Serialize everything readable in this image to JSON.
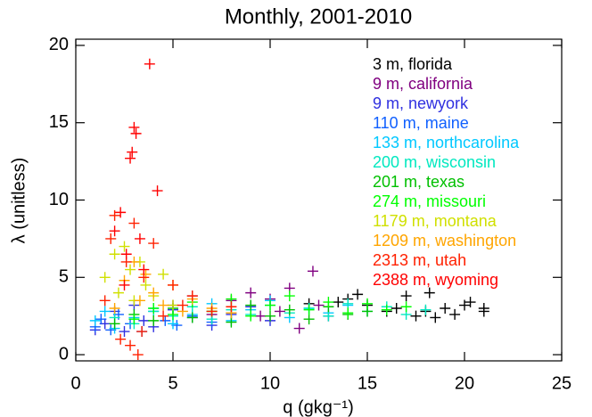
{
  "chart_data": {
    "type": "scatter",
    "title": "Monthly, 2001-2010",
    "xlabel": "q (gkg⁻¹)",
    "ylabel": "λ (unitless)",
    "xlim": [
      0,
      25
    ],
    "ylim": [
      -0.4,
      20.4
    ],
    "xticks": [
      0,
      5,
      10,
      15,
      20,
      25
    ],
    "yticks": [
      0,
      5,
      10,
      15,
      20
    ],
    "series": [
      {
        "name": "3 m, florida",
        "color": "#000000",
        "x": [
          12,
          13.5,
          14,
          14.5,
          15,
          16,
          16.5,
          17,
          17.5,
          18,
          18.2,
          18.5,
          19,
          19.5,
          20,
          20.3,
          21,
          21
        ],
        "values": [
          3.3,
          3.4,
          3.6,
          3.9,
          3.2,
          2.8,
          3.0,
          3.8,
          2.5,
          2.8,
          4.0,
          2.4,
          3.0,
          2.6,
          3.2,
          3.4,
          2.8,
          3.0
        ]
      },
      {
        "name": "9 m, california",
        "color": "#800080",
        "x": [
          5,
          6,
          7,
          8,
          9,
          9.5,
          10,
          10.5,
          11,
          11.5,
          12.2,
          12.5,
          13
        ],
        "values": [
          3.2,
          3.8,
          2.6,
          3.5,
          4.0,
          2.5,
          3.6,
          2.8,
          4.3,
          1.7,
          5.4,
          3.2,
          2.5
        ]
      },
      {
        "name": "9 m, newyork",
        "color": "#3030e0",
        "x": [
          1,
          1.5,
          2,
          2.5,
          3,
          3.5,
          4,
          5,
          6,
          7,
          8,
          9,
          10
        ],
        "values": [
          1.6,
          2.0,
          2.8,
          1.5,
          3.2,
          2.2,
          1.8,
          2.9,
          2.4,
          1.9,
          2.6,
          3.1,
          2.2
        ]
      },
      {
        "name": "110 m, maine",
        "color": "#1060ff",
        "x": [
          1,
          1.3,
          1.8,
          2.2,
          2.8,
          3.4,
          4,
          4.6,
          5.2,
          6,
          7,
          8
        ],
        "values": [
          1.8,
          2.3,
          1.6,
          2.6,
          2.0,
          1.5,
          2.8,
          2.2,
          1.9,
          2.5,
          2.1,
          2.7
        ]
      },
      {
        "name": "133 m, northcarolina",
        "color": "#00c8ff",
        "x": [
          1,
          1.5,
          2,
          3,
          4,
          5,
          6,
          7,
          8,
          9,
          10,
          11,
          12,
          13,
          14
        ],
        "values": [
          2.2,
          2.8,
          1.7,
          2.4,
          3.0,
          2.0,
          2.6,
          3.3,
          2.2,
          2.9,
          3.5,
          2.4,
          3.0,
          2.7,
          3.2
        ]
      },
      {
        "name": "200 m, wisconsin",
        "color": "#00e8c0",
        "x": [
          2,
          3,
          4,
          5,
          6,
          7,
          8,
          9,
          10,
          11,
          12,
          13,
          14,
          15,
          16,
          17,
          18
        ],
        "values": [
          2.4,
          2.0,
          2.8,
          2.5,
          3.1,
          2.3,
          2.9,
          2.6,
          3.2,
          2.7,
          3.0,
          2.5,
          3.3,
          2.8,
          3.1,
          2.6,
          2.9
        ]
      },
      {
        "name": "201 m, texas",
        "color": "#00c000",
        "x": [
          2,
          3,
          4,
          5,
          6,
          7,
          8,
          9,
          10,
          11,
          12,
          13,
          14,
          15
        ],
        "values": [
          2.0,
          2.6,
          2.2,
          3.0,
          2.4,
          2.8,
          2.1,
          3.2,
          2.5,
          2.9,
          2.3,
          3.1,
          2.6,
          2.8
        ]
      },
      {
        "name": "274 m, missouri",
        "color": "#00ff00",
        "x": [
          3,
          4,
          5,
          6,
          7,
          8,
          9,
          10,
          11,
          12,
          13,
          14,
          15,
          16,
          17
        ],
        "values": [
          2.3,
          3.0,
          2.6,
          3.4,
          2.8,
          3.6,
          2.5,
          3.2,
          3.8,
          2.9,
          3.4,
          2.7,
          3.3,
          2.9,
          3.1
        ]
      },
      {
        "name": "1179 m, montana",
        "color": "#d0e000",
        "x": [
          1.5,
          2,
          2.2,
          2.5,
          2.8,
          3,
          3.3,
          3.6,
          4,
          4.5,
          5
        ],
        "values": [
          5.0,
          6.5,
          4.0,
          7.0,
          5.5,
          3.5,
          6.0,
          4.5,
          3.8,
          5.2,
          3.2
        ]
      },
      {
        "name": "1209 m, washington",
        "color": "#ffa500",
        "x": [
          2,
          2.5,
          3,
          3.3,
          3.6,
          4,
          4.5,
          5,
          5.5,
          6,
          7,
          8
        ],
        "values": [
          3.0,
          4.8,
          6.0,
          3.5,
          5.2,
          4.0,
          3.2,
          4.5,
          2.8,
          3.6,
          3.0,
          2.7
        ]
      },
      {
        "name": "2313 m, utah",
        "color": "#ff2000",
        "x": [
          1.5,
          1.8,
          2,
          2.3,
          2.6,
          3,
          3.2,
          3.5,
          4,
          4.5,
          5,
          5.5,
          6,
          7,
          8,
          2.8,
          3.4
        ],
        "values": [
          3.5,
          7.5,
          9.0,
          1.0,
          6.0,
          8.5,
          0.0,
          5.0,
          7.2,
          2.5,
          4.5,
          3.2,
          3.8,
          2.8,
          3.1,
          0.6,
          1.5
        ]
      },
      {
        "name": "2388 m, wyoming",
        "color": "#ff0000",
        "x": [
          2,
          2.3,
          2.6,
          2.8,
          3,
          3.1,
          3.3,
          3.5,
          3.8,
          4.2,
          2.9,
          2.5
        ],
        "values": [
          8.0,
          9.2,
          6.5,
          12.7,
          14.7,
          14.3,
          7.5,
          5.5,
          18.8,
          10.6,
          13.1,
          4.5
        ]
      }
    ]
  }
}
